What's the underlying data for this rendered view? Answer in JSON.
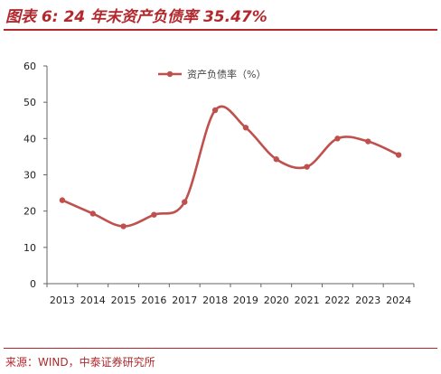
{
  "title": "图表 6:  24 年末资产负债率 35.47%",
  "source": "来源：WIND，中泰证券研究所",
  "colors": {
    "accent": "#b3282d",
    "series": "#c0504d"
  },
  "chart_data": {
    "type": "line",
    "categories": [
      "2013",
      "2014",
      "2015",
      "2016",
      "2017",
      "2018",
      "2019",
      "2020",
      "2021",
      "2022",
      "2023",
      "2024"
    ],
    "series": [
      {
        "name": "资产负债率（%）",
        "values": [
          23.0,
          19.3,
          15.8,
          19.0,
          22.5,
          47.8,
          43.0,
          34.3,
          32.2,
          40.0,
          39.2,
          35.47
        ]
      }
    ],
    "ylim": [
      0,
      60
    ],
    "yticks": [
      0,
      10,
      20,
      30,
      40,
      50,
      60
    ],
    "legend_position": "top-center",
    "grid": false
  }
}
